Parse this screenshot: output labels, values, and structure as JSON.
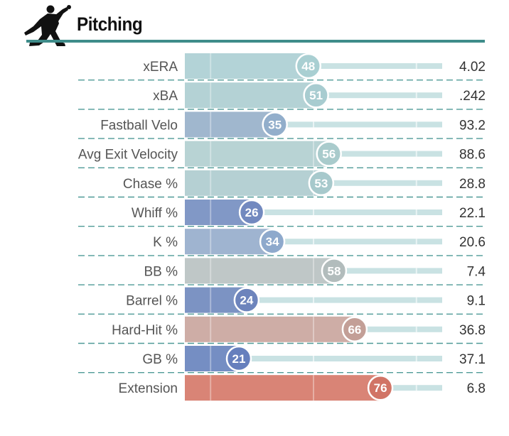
{
  "header": {
    "title": "Pitching",
    "icon": "pitcher-icon"
  },
  "colors": {
    "rule": "#3e8c8a",
    "track": "#c9e2e3",
    "separator": "#4f9a97"
  },
  "chart_data": {
    "type": "bar",
    "title": "Pitching",
    "xlim": [
      0,
      100
    ],
    "rows": [
      {
        "metric": "xERA",
        "percentile": 48,
        "value": "4.02",
        "color": "#b3d3d7",
        "circle": "#a9cfd2"
      },
      {
        "metric": "xBA",
        "percentile": 51,
        "value": ".242",
        "color": "#b4d2d5",
        "circle": "#a8ccd0"
      },
      {
        "metric": "Fastball Velo",
        "percentile": 35,
        "value": "93.2",
        "color": "#a0b7ce",
        "circle": "#92aecb"
      },
      {
        "metric": "Avg Exit Velocity",
        "percentile": 56,
        "value": "88.6",
        "color": "#b8d3d4",
        "circle": "#a9cbcc"
      },
      {
        "metric": "Chase %",
        "percentile": 53,
        "value": "28.8",
        "color": "#b5d0d3",
        "circle": "#a7c9cc"
      },
      {
        "metric": "Whiff %",
        "percentile": 26,
        "value": "22.1",
        "color": "#8198c6",
        "circle": "#7289bf"
      },
      {
        "metric": "K %",
        "percentile": 34,
        "value": "20.6",
        "color": "#9fb4d0",
        "circle": "#8ea9cc"
      },
      {
        "metric": "BB %",
        "percentile": 58,
        "value": "7.4",
        "color": "#bfc7c7",
        "circle": "#b2bcbc"
      },
      {
        "metric": "Barrel %",
        "percentile": 24,
        "value": "9.1",
        "color": "#7c93c3",
        "circle": "#6d84bc"
      },
      {
        "metric": "Hard-Hit %",
        "percentile": 66,
        "value": "36.8",
        "color": "#ceada6",
        "circle": "#c39f97"
      },
      {
        "metric": "GB %",
        "percentile": 21,
        "value": "37.1",
        "color": "#758ec3",
        "circle": "#667fbd"
      },
      {
        "metric": "Extension",
        "percentile": 76,
        "value": "6.8",
        "color": "#d98476",
        "circle": "#d17466"
      }
    ]
  }
}
